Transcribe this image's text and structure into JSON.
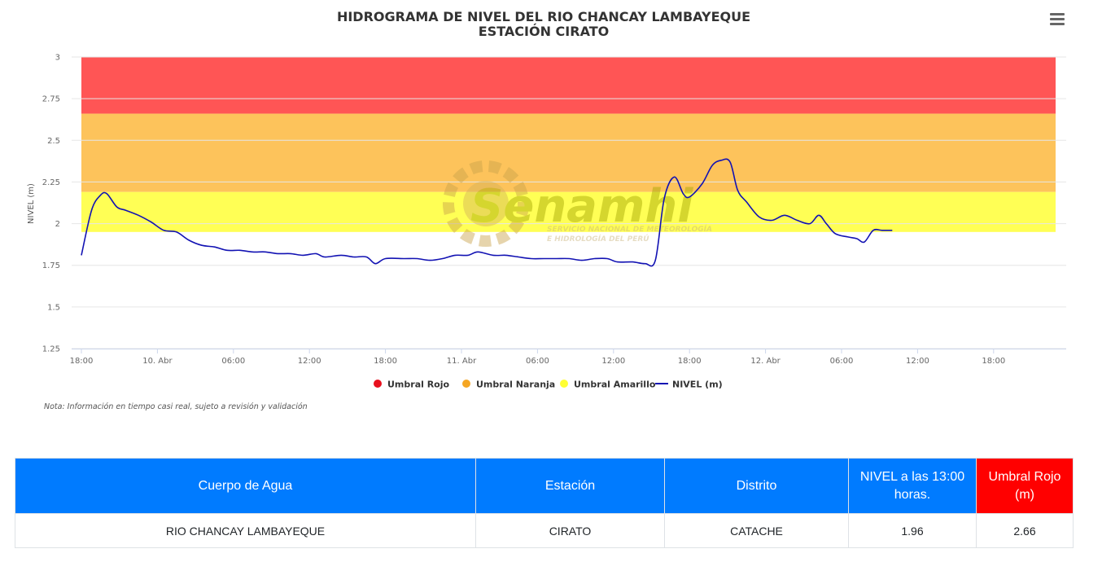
{
  "chart_data": {
    "type": "line",
    "title": [
      "HIDROGRAMA DE NIVEL DEL RIO CHANCAY LAMBAYEQUE",
      "ESTACIÓN CIRATO"
    ],
    "ylabel": "NIVEL (m)",
    "ylim": [
      1.25,
      3
    ],
    "yticks": [
      "1.25",
      "1.5",
      "1.75",
      "2",
      "2.25",
      "2.5",
      "2.75",
      "3"
    ],
    "xlim_hours": [
      0,
      60
    ],
    "xticks": [
      {
        "h": 0,
        "label": "18:00"
      },
      {
        "h": 6,
        "label": "10. Abr"
      },
      {
        "h": 12,
        "label": "06:00"
      },
      {
        "h": 18,
        "label": "12:00"
      },
      {
        "h": 24,
        "label": "18:00"
      },
      {
        "h": 30,
        "label": "11. Abr"
      },
      {
        "h": 36,
        "label": "06:00"
      },
      {
        "h": 42,
        "label": "12:00"
      },
      {
        "h": 48,
        "label": "18:00"
      },
      {
        "h": 54,
        "label": "12. Abr"
      },
      {
        "h": 60,
        "label": "06:00"
      },
      {
        "h": 66,
        "label": "12:00"
      },
      {
        "h": 72,
        "label": "18:00"
      }
    ],
    "bands": [
      {
        "name": "Umbral Rojo",
        "from": 2.66,
        "to": 3.0,
        "color": "#ff5555"
      },
      {
        "name": "Umbral Naranja",
        "from": 2.19,
        "to": 2.66,
        "color": "#fdc35b"
      },
      {
        "name": "Umbral Amarillo",
        "from": 1.95,
        "to": 2.19,
        "color": "#ffff55"
      }
    ],
    "series": [
      {
        "name": "NIVEL (m)",
        "color": "#1212b3",
        "points": [
          [
            0.0,
            1.81
          ],
          [
            0.8,
            2.08
          ],
          [
            1.5,
            2.17
          ],
          [
            2.0,
            2.18
          ],
          [
            2.8,
            2.1
          ],
          [
            3.5,
            2.08
          ],
          [
            4.5,
            2.05
          ],
          [
            5.5,
            2.01
          ],
          [
            6.5,
            1.96
          ],
          [
            7.5,
            1.95
          ],
          [
            8.5,
            1.9
          ],
          [
            9.5,
            1.87
          ],
          [
            10.5,
            1.86
          ],
          [
            11.5,
            1.84
          ],
          [
            12.5,
            1.84
          ],
          [
            13.5,
            1.83
          ],
          [
            14.5,
            1.83
          ],
          [
            15.5,
            1.82
          ],
          [
            16.5,
            1.82
          ],
          [
            17.5,
            1.81
          ],
          [
            18.5,
            1.82
          ],
          [
            19.2,
            1.8
          ],
          [
            20.5,
            1.81
          ],
          [
            21.5,
            1.8
          ],
          [
            22.5,
            1.8
          ],
          [
            23.2,
            1.76
          ],
          [
            24.0,
            1.79
          ],
          [
            25.5,
            1.79
          ],
          [
            26.5,
            1.79
          ],
          [
            27.5,
            1.78
          ],
          [
            28.5,
            1.79
          ],
          [
            29.5,
            1.81
          ],
          [
            30.5,
            1.81
          ],
          [
            31.3,
            1.83
          ],
          [
            32.5,
            1.81
          ],
          [
            33.5,
            1.81
          ],
          [
            34.5,
            1.8
          ],
          [
            35.5,
            1.79
          ],
          [
            36.5,
            1.79
          ],
          [
            37.5,
            1.79
          ],
          [
            38.5,
            1.79
          ],
          [
            39.5,
            1.78
          ],
          [
            40.5,
            1.79
          ],
          [
            41.5,
            1.79
          ],
          [
            42.3,
            1.77
          ],
          [
            43.5,
            1.77
          ],
          [
            44.5,
            1.76
          ],
          [
            45.3,
            1.78
          ],
          [
            46.0,
            2.15
          ],
          [
            46.8,
            2.28
          ],
          [
            47.5,
            2.18
          ],
          [
            48.0,
            2.16
          ],
          [
            49.0,
            2.24
          ],
          [
            49.8,
            2.35
          ],
          [
            50.5,
            2.38
          ],
          [
            51.2,
            2.37
          ],
          [
            51.8,
            2.2
          ],
          [
            52.5,
            2.13
          ],
          [
            53.5,
            2.04
          ],
          [
            54.5,
            2.02
          ],
          [
            55.5,
            2.05
          ],
          [
            56.5,
            2.02
          ],
          [
            57.5,
            2.0
          ],
          [
            58.2,
            2.05
          ],
          [
            58.8,
            2.0
          ],
          [
            59.5,
            1.94
          ],
          [
            60.5,
            1.92
          ],
          [
            61.2,
            1.91
          ],
          [
            61.8,
            1.89
          ],
          [
            62.5,
            1.96
          ],
          [
            63.2,
            1.96
          ],
          [
            64.0,
            1.96
          ]
        ]
      }
    ],
    "legend": [
      "Umbral Rojo",
      "Umbral Naranja",
      "Umbral Amarillo",
      "NIVEL (m)"
    ],
    "legend_colors": [
      "#e8101e",
      "#f5a623",
      "#ffff33",
      "#1212b3"
    ],
    "legend_position": "bottom",
    "grid": true,
    "note": "Nota: Información en tiempo casi real, sujeto a revisión y validación",
    "watermark": {
      "brand": "Senamhi",
      "line1": "SERVICIO NACIONAL DE METEOROLOGÍA",
      "line2": "E HIDROLOGÍA DEL PERÚ"
    }
  },
  "menu_icon": "hamburger-menu-icon",
  "table": {
    "headers": [
      "Cuerpo de Agua",
      "Estación",
      "Distrito",
      "NIVEL a las 13:00 horas.",
      "Umbral Rojo (m)"
    ],
    "row": [
      "RIO CHANCAY LAMBAYEQUE",
      "CIRATO",
      "CATACHE",
      "1.96",
      "2.66"
    ],
    "header_color": "#007bff",
    "red_header_color": "#ff0000"
  }
}
